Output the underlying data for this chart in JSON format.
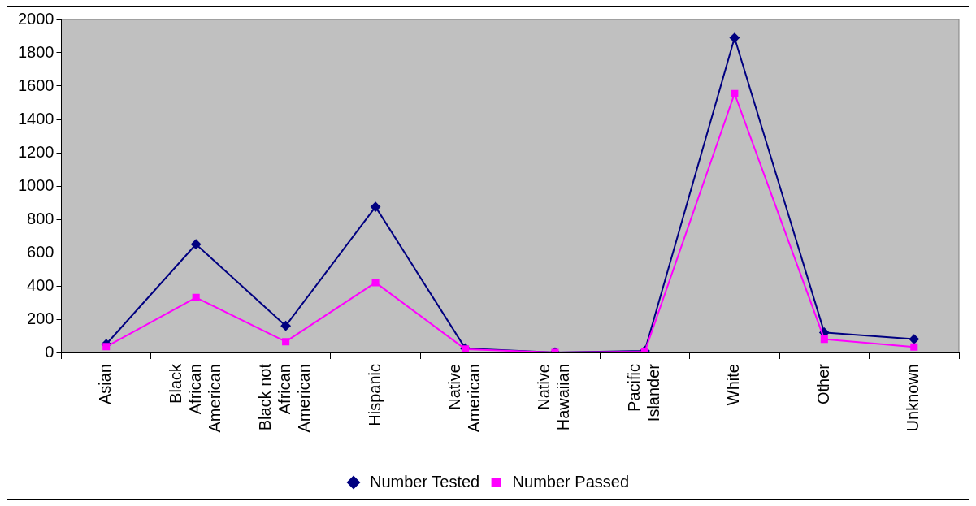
{
  "chart_data": {
    "type": "line",
    "categories": [
      "Asian",
      "Black African American",
      "Black not African American",
      "Hispanic",
      "Native American",
      "Native Hawaiian",
      "Pacific Islander",
      "White",
      "Other",
      "Unknown"
    ],
    "series": [
      {
        "name": "Number Tested",
        "color": "#000080",
        "marker": "diamond",
        "values": [
          50,
          650,
          160,
          875,
          25,
          0,
          10,
          1890,
          120,
          80
        ]
      },
      {
        "name": "Number Passed",
        "color": "#ff00ff",
        "marker": "square",
        "values": [
          35,
          330,
          65,
          420,
          20,
          0,
          5,
          1555,
          80,
          33
        ]
      }
    ],
    "ylim": [
      0,
      2000
    ],
    "yticks": [
      0,
      200,
      400,
      600,
      800,
      1000,
      1200,
      1400,
      1600,
      1800,
      2000
    ],
    "grid": false,
    "legend": "bottom"
  }
}
